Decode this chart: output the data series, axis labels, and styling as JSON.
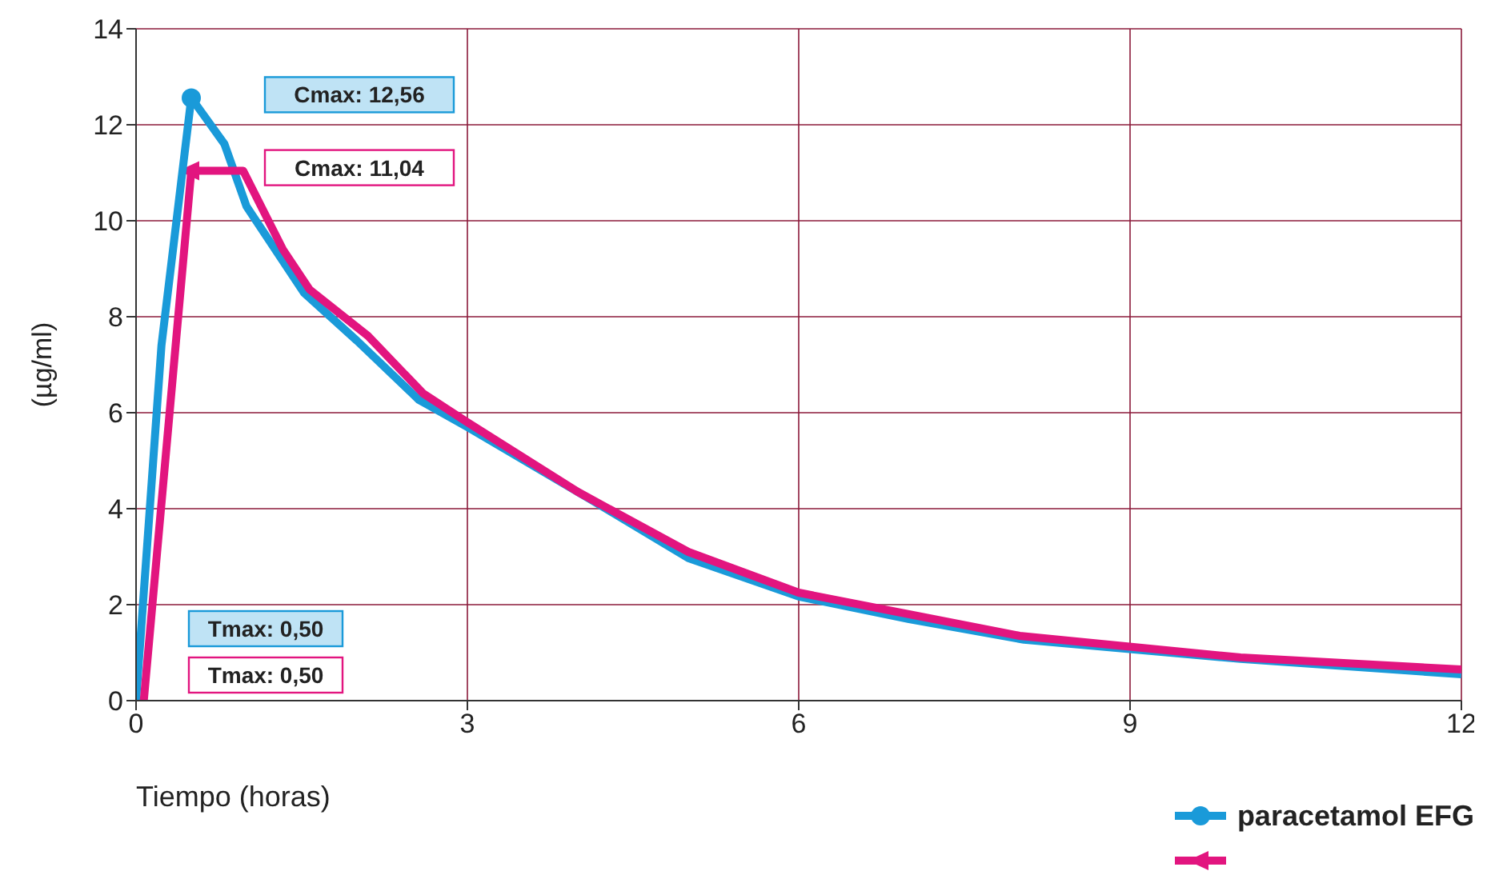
{
  "chart_data": {
    "type": "line",
    "xlabel": "Tiempo (horas)",
    "ylabel": "(µg/ml)",
    "xlim": [
      0,
      12
    ],
    "xticks": [
      0,
      3,
      6,
      9,
      12
    ],
    "ylim": [
      0,
      14
    ],
    "yticks": [
      0,
      2,
      4,
      6,
      8,
      10,
      12,
      14
    ],
    "grid": true,
    "legend": "bottom right",
    "series": [
      {
        "name": "paracetamol EFG",
        "color": "#1a9ad9",
        "x": [
          0,
          0.23,
          0.5,
          0.8,
          1.0,
          1.52,
          2.0,
          2.56,
          3.0,
          4.13,
          5.0,
          6.0,
          7.0,
          8.04,
          10.0,
          12.0
        ],
        "values": [
          0,
          7.4,
          12.56,
          11.6,
          10.3,
          8.5,
          7.5,
          6.27,
          5.7,
          4.17,
          2.97,
          2.17,
          1.7,
          1.27,
          0.87,
          0.55
        ]
      },
      {
        "color": "#e2157f",
        "x": [
          0.07,
          0.5,
          0.97,
          1.33,
          1.57,
          2.1,
          2.6,
          3.0,
          4.0,
          5.0,
          6.0,
          8.0,
          10.0,
          12.0
        ],
        "values": [
          0,
          11.04,
          11.04,
          9.4,
          8.57,
          7.6,
          6.4,
          5.8,
          4.35,
          3.1,
          2.25,
          1.35,
          0.9,
          0.65
        ]
      }
    ],
    "annotations": [
      "Cmax: 12,56",
      "Cmax: 11,04",
      "Tmax: 0,50",
      "Tmax: 0,50"
    ]
  }
}
